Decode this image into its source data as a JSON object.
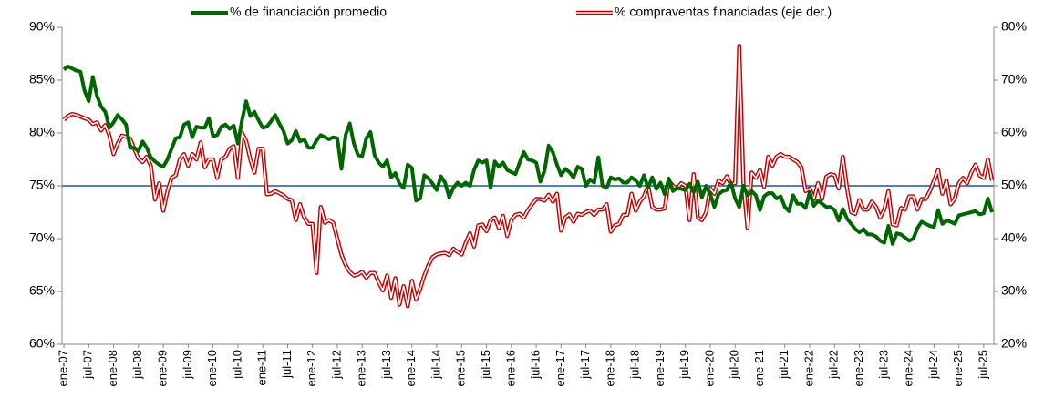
{
  "chart_data": {
    "type": "line",
    "categories": [
      "ene-07",
      null,
      null,
      null,
      null,
      null,
      "jul-07",
      null,
      null,
      null,
      null,
      null,
      "ene-08",
      null,
      null,
      null,
      null,
      null,
      "jul-08",
      null,
      null,
      null,
      null,
      null,
      "ene-09",
      null,
      null,
      null,
      null,
      null,
      "jul-09",
      null,
      null,
      null,
      null,
      null,
      "ene-10",
      null,
      null,
      null,
      null,
      null,
      "jul-10",
      null,
      null,
      null,
      null,
      null,
      "ene-11",
      null,
      null,
      null,
      null,
      null,
      "jul-11",
      null,
      null,
      null,
      null,
      null,
      "ene-12",
      null,
      null,
      null,
      null,
      null,
      "jul-12",
      null,
      null,
      null,
      null,
      null,
      "ene-13",
      null,
      null,
      null,
      null,
      null,
      "jul-13",
      null,
      null,
      null,
      null,
      null,
      "ene-14",
      null,
      null,
      null,
      null,
      null,
      "jul-14",
      null,
      null,
      null,
      null,
      null,
      "ene-15",
      null,
      null,
      null,
      null,
      null,
      "jul-15",
      null,
      null,
      null,
      null,
      null,
      "ene-16",
      null,
      null,
      null,
      null,
      null,
      "jul-16",
      null,
      null,
      null,
      null,
      null,
      "ene-17",
      null,
      null,
      null,
      null,
      null,
      "jul-17",
      null,
      null,
      null,
      null,
      null,
      "ene-18",
      null,
      null,
      null,
      null,
      null,
      "jul-18",
      null,
      null,
      null,
      null,
      null,
      "ene-19",
      null,
      null,
      null,
      null,
      null,
      "jul-19",
      null,
      null,
      null,
      null,
      null,
      "ene-20",
      null,
      null,
      null,
      null,
      null,
      "jul-20",
      null,
      null,
      null,
      null,
      null,
      "ene-21",
      null,
      null,
      null,
      null,
      null,
      "jul-21",
      null,
      null,
      null,
      null,
      null,
      "ene-22",
      null,
      null,
      null,
      null,
      null,
      "jul-22",
      null,
      null,
      null,
      null,
      null,
      "ene-23",
      null,
      null,
      null,
      null,
      null,
      "jul-23",
      null,
      null,
      null,
      null,
      null,
      "ene-24",
      null,
      null,
      null,
      null,
      null,
      "jul-24",
      null,
      null,
      null,
      null,
      null,
      "ene-25",
      null,
      null,
      null,
      null,
      null,
      "jul-25",
      null,
      null
    ],
    "series": [
      {
        "name": "% de financiación promedio",
        "color": "#006600",
        "values": [
          86,
          86.3,
          86.1,
          85.9,
          85.8,
          84,
          83,
          85.3,
          83.5,
          82.5,
          82,
          80.5,
          81,
          81.7,
          81.3,
          80.8,
          78.6,
          78.6,
          78.3,
          79.2,
          78.6,
          77.7,
          77.3,
          77,
          76.8,
          77.5,
          78.5,
          79.5,
          79.6,
          80.8,
          81,
          79.6,
          80.6,
          80.5,
          80.5,
          81.4,
          79.7,
          79.8,
          80.6,
          80.8,
          80.4,
          80.7,
          79,
          81.2,
          83,
          81.6,
          82,
          81.2,
          80.5,
          80.6,
          81.1,
          81.7,
          80.9,
          80.2,
          79,
          79.3,
          80.2,
          79.2,
          79.4,
          78.6,
          78.6,
          79.3,
          79.8,
          79.6,
          79.4,
          79.6,
          79.5,
          76.6,
          79.8,
          80.9,
          79,
          77.9,
          77.8,
          79.5,
          80.1,
          77.9,
          77.2,
          76.8,
          77.4,
          75.8,
          76.2,
          75.2,
          74.8,
          77,
          76.7,
          73.6,
          73.8,
          76,
          75.7,
          75.2,
          74.6,
          75.9,
          75.3,
          73.9,
          74.8,
          75.3,
          75,
          75.3,
          75,
          76.5,
          77.4,
          77.2,
          77.4,
          74.8,
          77.3,
          76.8,
          77.2,
          76.5,
          76.3,
          76.1,
          77.2,
          78.2,
          77.5,
          77.4,
          77.2,
          75.4,
          76.4,
          78.8,
          78.2,
          77,
          76,
          76.6,
          76.3,
          75.8,
          76.8,
          76.6,
          75,
          75.6,
          75.3,
          77.7,
          75,
          74.8,
          75.8,
          75.6,
          75.7,
          75.3,
          75.3,
          75.8,
          75.5,
          75,
          76,
          74.8,
          75.8,
          74.7,
          75.3,
          74.2,
          75.7,
          74.5,
          74.8,
          74.7,
          74.6,
          75.2,
          74.4,
          75.4,
          73.9,
          75,
          74.2,
          73,
          74.2,
          74.5,
          74.6,
          75.3,
          73.8,
          73,
          75,
          74.1,
          74.5,
          74.1,
          72.7,
          74,
          74.3,
          74.3,
          73.8,
          74,
          73,
          72.6,
          74.1,
          73.3,
          73.3,
          72.9,
          74.4,
          73.1,
          73.6,
          73.3,
          73,
          73,
          72.7,
          71.7,
          72.8,
          71.9,
          71.4,
          70.9,
          70.6,
          70.9,
          70.4,
          70.4,
          70.2,
          69.8,
          69.6,
          71.2,
          69.5,
          70.5,
          70.4,
          70.1,
          69.8,
          70,
          71,
          71.6,
          71.4,
          71.2,
          71.1,
          72.7,
          71.4,
          71.7,
          71.6,
          71.4,
          72.2,
          72.3,
          72.4,
          72.5,
          72.6,
          72.3,
          72.4,
          73.8,
          72.5
        ]
      },
      {
        "name": "% compraventas financiadas (eje der.)",
        "color": "#c00000",
        "axis": "y2",
        "values": [
          62.5,
          63.2,
          63.6,
          63.4,
          63.1,
          62.8,
          62.5,
          61.7,
          62,
          60.5,
          61.5,
          59.5,
          56,
          58,
          59.5,
          59.3,
          58.9,
          57,
          55.2,
          54.5,
          55.5,
          53.8,
          47.4,
          50.5,
          45.3,
          49,
          51.5,
          52,
          55,
          56,
          53.8,
          56,
          55,
          58.2,
          53.5,
          55,
          55,
          51.5,
          55,
          55.5,
          57,
          57.5,
          51.5,
          60,
          58.5,
          55,
          52.5,
          57,
          57,
          48.4,
          48.5,
          49,
          48.6,
          48.2,
          47.5,
          47.3,
          43.5,
          46.5,
          44,
          42.8,
          42.8,
          33.5,
          46,
          43,
          43.5,
          43,
          40,
          37,
          35,
          33.7,
          33,
          33.2,
          33.7,
          32.6,
          33.5,
          33.5,
          31.7,
          30.2,
          33,
          28.8,
          32.5,
          27.5,
          31,
          27.2,
          32,
          28.5,
          30.5,
          33,
          35,
          36.5,
          37,
          37.2,
          37.3,
          36.9,
          38.1,
          37.5,
          37,
          39.2,
          41,
          38.5,
          42.5,
          42.7,
          41.4,
          43.5,
          44,
          42,
          44.3,
          40.5,
          43.5,
          44.5,
          44.7,
          44,
          45.4,
          46.5,
          47.5,
          47.5,
          47.2,
          48.3,
          47,
          48.5,
          41.5,
          44,
          44.6,
          43.2,
          44.7,
          44.5,
          45,
          45.3,
          44.5,
          45.5,
          45.5,
          46.5,
          41.3,
          42.5,
          42.8,
          44.5,
          44.5,
          48.5,
          45.3,
          47,
          48,
          50,
          46,
          45.5,
          45.5,
          45.7,
          51,
          50,
          49.5,
          50.5,
          50,
          43.5,
          52.2,
          44,
          43.5,
          45,
          49.5,
          48.5,
          51,
          50.5,
          51.8,
          50.3,
          50.5,
          76.5,
          50.5,
          42,
          52.5,
          51.5,
          53,
          49.8,
          55.5,
          53.8,
          55.5,
          56,
          55.5,
          55.5,
          55,
          54.5,
          53.5,
          49,
          49.5,
          47.5,
          50.5,
          47.5,
          51.7,
          52.2,
          52,
          49.5,
          55.5,
          49.6,
          45,
          44.7,
          47.3,
          45.5,
          45.5,
          47,
          46,
          44,
          45.5,
          49,
          42.7,
          42.5,
          45.8,
          45.5,
          48,
          48,
          45.5,
          47.5,
          47.5,
          49,
          51,
          53,
          48.5,
          51,
          46.5,
          47.5,
          50.5,
          51.5,
          50.5,
          52.5,
          54,
          52,
          51.5,
          55,
          51
        ]
      }
    ],
    "reference_line": {
      "value": 75,
      "color": "#4f81bd"
    },
    "ylim": [
      60,
      90
    ],
    "yticks": [
      {
        "value": 60,
        "label": "60%"
      },
      {
        "value": 65,
        "label": "65%"
      },
      {
        "value": 70,
        "label": "70%"
      },
      {
        "value": 75,
        "label": "75%"
      },
      {
        "value": 80,
        "label": "80%"
      },
      {
        "value": 85,
        "label": "85%"
      },
      {
        "value": 90,
        "label": "90%"
      }
    ],
    "y2lim": [
      20,
      80
    ],
    "y2ticks": [
      {
        "value": 20,
        "label": "20%"
      },
      {
        "value": 30,
        "label": "30%"
      },
      {
        "value": 40,
        "label": "40%"
      },
      {
        "value": 50,
        "label": "50%"
      },
      {
        "value": 60,
        "label": "60%"
      },
      {
        "value": 70,
        "label": "70%"
      },
      {
        "value": 80,
        "label": "80%"
      }
    ],
    "legend": "top"
  }
}
